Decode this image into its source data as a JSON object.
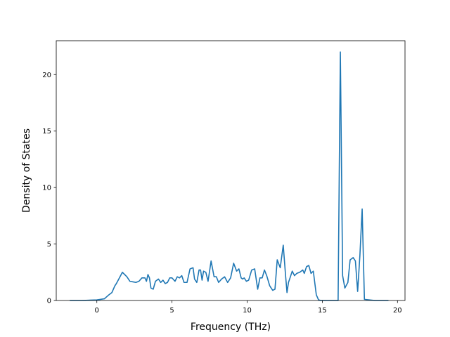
{
  "chart_data": {
    "type": "line",
    "title": "",
    "xlabel": "Frequency (THz)",
    "ylabel": "Density of States",
    "xlim": [
      -2.7,
      20.5
    ],
    "ylim": [
      0,
      23
    ],
    "xticks": [
      0,
      5,
      10,
      15,
      20
    ],
    "yticks": [
      0,
      5,
      10,
      15,
      20
    ],
    "grid": false,
    "line_color": "#1f77b4",
    "series": [
      {
        "x": [
          -1.8,
          -1.0,
          0.0,
          0.5,
          0.8,
          1.0,
          1.2,
          1.3,
          1.5,
          1.7,
          1.85,
          2.0,
          2.2,
          2.4,
          2.6,
          2.8,
          3.0,
          3.2,
          3.3,
          3.4,
          3.5,
          3.6,
          3.75,
          3.9,
          4.1,
          4.25,
          4.4,
          4.55,
          4.7,
          4.85,
          5.0,
          5.2,
          5.35,
          5.5,
          5.65,
          5.8,
          6.0,
          6.2,
          6.4,
          6.5,
          6.65,
          6.8,
          6.9,
          7.0,
          7.1,
          7.25,
          7.4,
          7.6,
          7.7,
          7.8,
          7.95,
          8.1,
          8.3,
          8.5,
          8.7,
          8.9,
          9.1,
          9.3,
          9.45,
          9.6,
          9.7,
          9.8,
          9.95,
          10.1,
          10.3,
          10.5,
          10.7,
          10.85,
          11.0,
          11.15,
          11.3,
          11.5,
          11.7,
          11.85,
          12.0,
          12.2,
          12.4,
          12.55,
          12.65,
          12.75,
          12.85,
          13.0,
          13.15,
          13.3,
          13.5,
          13.7,
          13.8,
          13.95,
          14.1,
          14.25,
          14.4,
          14.6,
          14.75,
          14.9,
          15.0,
          15.5,
          16.05,
          16.2,
          16.35,
          16.5,
          16.7,
          16.85,
          17.05,
          17.2,
          17.35,
          17.5,
          17.65,
          17.8,
          18.5,
          19.4
        ],
        "y": [
          0,
          0,
          0.05,
          0.15,
          0.5,
          0.7,
          1.3,
          1.5,
          2.0,
          2.5,
          2.3,
          2.1,
          1.7,
          1.65,
          1.6,
          1.7,
          2.0,
          2.0,
          1.7,
          2.3,
          2.0,
          1.1,
          1.0,
          1.7,
          1.9,
          1.6,
          1.8,
          1.5,
          1.6,
          2.0,
          2.0,
          1.7,
          2.1,
          2.0,
          2.2,
          1.6,
          1.6,
          2.8,
          2.9,
          1.9,
          1.6,
          2.7,
          2.7,
          1.8,
          2.6,
          2.5,
          1.7,
          3.5,
          2.8,
          2.1,
          2.1,
          1.6,
          1.9,
          2.1,
          1.6,
          2.0,
          3.3,
          2.6,
          2.8,
          2.0,
          1.9,
          2.0,
          1.7,
          1.8,
          2.7,
          2.8,
          1.0,
          2.0,
          2.0,
          2.7,
          2.2,
          1.3,
          0.9,
          1.0,
          3.6,
          2.9,
          4.9,
          2.3,
          0.7,
          1.6,
          2.0,
          2.6,
          2.2,
          2.4,
          2.5,
          2.7,
          2.4,
          3.0,
          3.1,
          2.4,
          2.6,
          0.5,
          0.05,
          0,
          0,
          0,
          0,
          22.0,
          2.2,
          1.1,
          1.6,
          3.6,
          3.8,
          3.5,
          0.8,
          4.0,
          8.1,
          0.1,
          0,
          0
        ]
      }
    ]
  }
}
